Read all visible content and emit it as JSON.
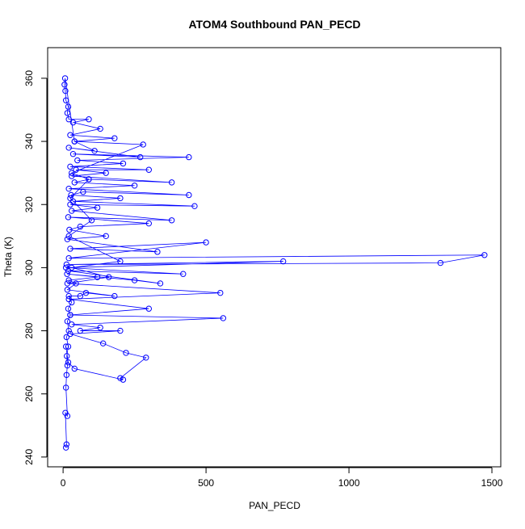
{
  "chart_data": {
    "type": "line",
    "title": "ATOM4 Southbound PAN_PECD",
    "x_label": "PAN_PECD",
    "y_label": "Theta (K)",
    "markers": true,
    "series": [
      {
        "color": "#0000ff",
        "x": [
          10,
          12,
          8,
          15,
          10,
          12,
          15,
          13,
          18,
          12,
          20,
          15,
          25,
          18,
          30,
          20,
          60,
          80,
          180,
          15,
          45,
          20,
          120,
          14,
          250,
          340,
          18,
          420,
          10,
          770,
          12,
          1320,
          1474,
          20,
          500,
          25,
          330,
          15,
          150,
          22,
          60,
          300,
          18,
          380,
          30,
          120,
          25,
          460,
          35,
          200,
          28,
          70,
          440,
          20,
          250,
          40,
          90,
          380,
          30,
          150,
          45,
          300,
          25,
          210,
          50,
          440,
          35,
          270,
          20,
          110,
          40,
          180,
          25,
          130,
          35,
          90,
          20,
          15,
          18,
          10,
          8,
          5,
          7,
          40,
          280,
          30,
          90,
          25,
          100,
          20,
          200,
          30,
          160,
          15,
          550,
          20,
          300,
          25,
          560,
          30,
          130,
          60,
          200,
          25,
          140,
          220,
          290,
          200,
          210,
          40,
          18,
          10
        ],
        "values": [
          243,
          244,
          254,
          253,
          262,
          266,
          269,
          272,
          275,
          278,
          280,
          283,
          285,
          287,
          289,
          291,
          291,
          292,
          291,
          293,
          295,
          296,
          297,
          298,
          296,
          295,
          299,
          298,
          300,
          302,
          301,
          301.5,
          304,
          303,
          308,
          306,
          305,
          309,
          310,
          312,
          313,
          314,
          316,
          315,
          318,
          319,
          320,
          319.5,
          321,
          322,
          323,
          324,
          323,
          325,
          326,
          327,
          328,
          327,
          329,
          330,
          331,
          331,
          332,
          333,
          334,
          335,
          336,
          335,
          338,
          337,
          340,
          341,
          342,
          344,
          346,
          347,
          347,
          349,
          351,
          353,
          356,
          358,
          360,
          340,
          339,
          330,
          328,
          322,
          315,
          310,
          302,
          300,
          297,
          295,
          292,
          290,
          287,
          285,
          284,
          282,
          281,
          280,
          280,
          279,
          276,
          273,
          271.5,
          265,
          264.5,
          268,
          270,
          275
        ]
      }
    ],
    "xlim": [
      -54,
      1531
    ],
    "ylim": [
      236.9,
      369.7
    ],
    "xticks": [
      0,
      500,
      1000,
      1500
    ],
    "yticks": [
      240,
      260,
      280,
      300,
      320,
      340,
      360
    ]
  }
}
